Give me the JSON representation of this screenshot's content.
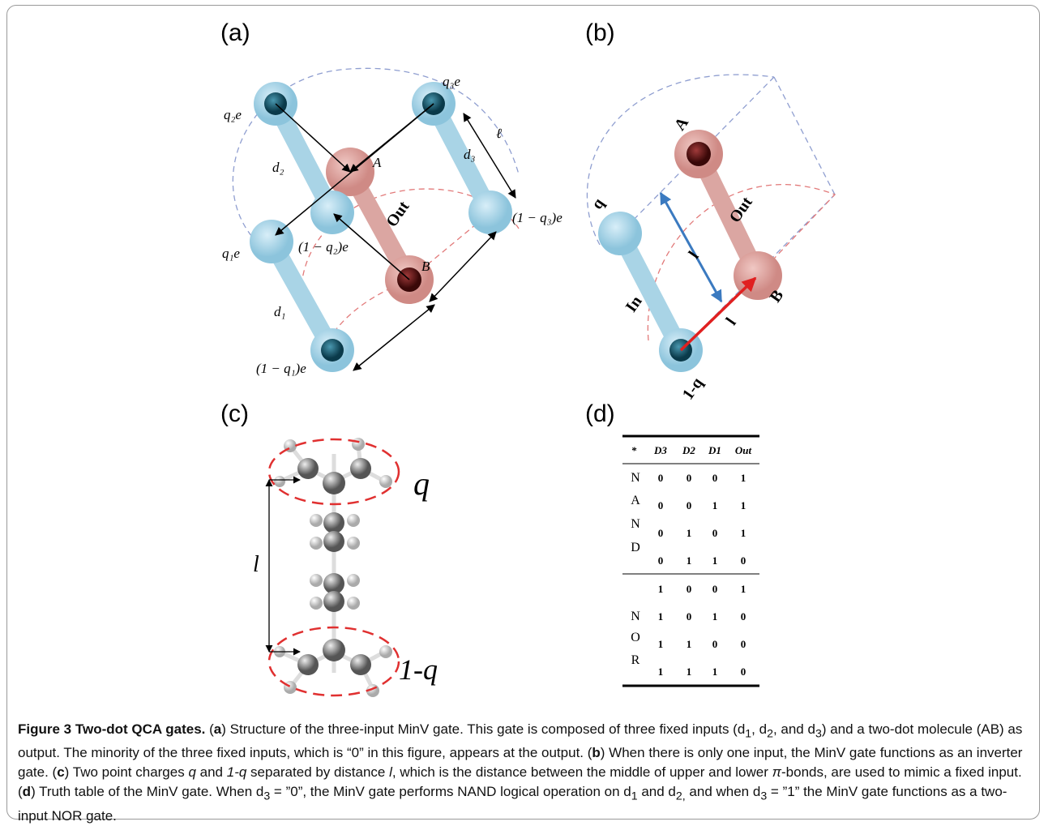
{
  "panels": {
    "a": {
      "label": "(a)",
      "q2e": "q₂e",
      "q3e": "q₃e",
      "d2": "d₂",
      "d3": "d₃",
      "ell": "ℓ",
      "A": "A",
      "out": "Out",
      "one_minus_q3e": "(1 − q₃)e",
      "q1e": "q₁e",
      "one_minus_q2e": "(1 − q₂)e",
      "B": "B",
      "d1": "d₁",
      "one_minus_q1e": "(1 − q₁)e"
    },
    "b": {
      "label": "(b)",
      "A": "A",
      "out": "Out",
      "q": "q",
      "l_blue": "l",
      "in": "In",
      "B": "B",
      "l_red": "l",
      "one_minus_q": "1-q"
    },
    "c": {
      "label": "(c)",
      "q": "q",
      "l": "l",
      "one_minus_q": "1-q"
    },
    "d": {
      "label": "(d)"
    }
  },
  "table": {
    "header": [
      "*",
      "D3",
      "D2",
      "D1",
      "Out"
    ],
    "group_labels": [
      [
        "N",
        "A",
        "N",
        "D"
      ],
      [
        "N",
        "O",
        "R"
      ]
    ],
    "rows": [
      [
        0,
        0,
        0,
        1
      ],
      [
        0,
        0,
        1,
        1
      ],
      [
        0,
        1,
        0,
        1
      ],
      [
        0,
        1,
        1,
        0
      ],
      [
        1,
        0,
        0,
        1
      ],
      [
        1,
        0,
        1,
        0
      ],
      [
        1,
        1,
        0,
        0
      ],
      [
        1,
        1,
        1,
        0
      ]
    ]
  },
  "caption": {
    "title": "Figure 3 Two-dot QCA gates.",
    "runs": [
      " (",
      "a",
      ") Structure of the three-input MinV gate. This gate is composed of three fixed inputs (d",
      "1",
      ", d",
      "2",
      ", and d",
      "3",
      ") and a two-dot molecule (AB) as output. The minority of the three fixed inputs, which is “0” in this figure, appears at the output. (",
      "b",
      ") When there is only one input, the MinV gate functions as an inverter gate. (",
      "c",
      ") Two point charges ",
      "q",
      " and ",
      "1-q",
      " separated by distance ",
      "l",
      ", which is the distance between the middle of upper and lower ",
      "π",
      "-bonds, are used to mimic a fixed input. (",
      "d",
      ") Truth table of the MinV gate. When d",
      "3",
      " = ”0”, the MinV gate performs NAND logical operation on d",
      "1",
      " and d",
      "2,",
      " and when d",
      "3",
      " = ”1” the MinV gate functions as a two-input NOR gate."
    ]
  }
}
